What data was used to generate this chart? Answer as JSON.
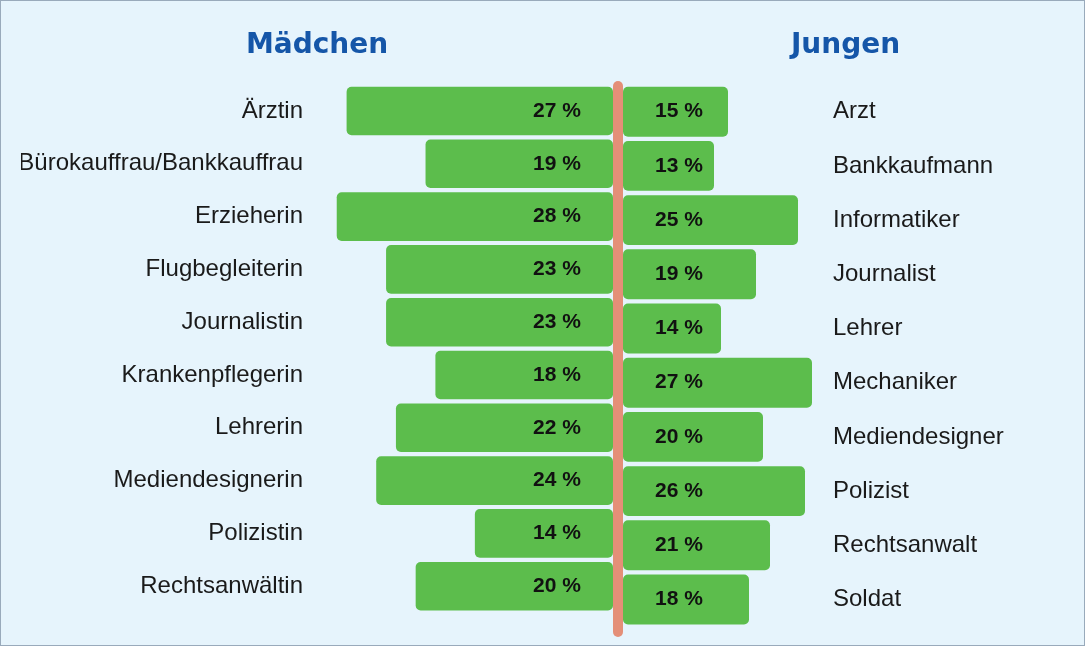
{
  "chart_data": [
    {
      "type": "bar",
      "orientation": "horizontal",
      "title": "Mädchen",
      "categories": [
        "Ärztin",
        "Bürokauffrau/Bankkauffrau",
        "Erzieherin",
        "Flugbegleiterin",
        "Journalistin",
        "Krankenpflegerin",
        "Lehrerin",
        "Mediendesignerin",
        "Polizistin",
        "Rechtsanwältin"
      ],
      "values": [
        27,
        19,
        28,
        23,
        23,
        18,
        22,
        24,
        14,
        20
      ],
      "value_labels": [
        "27 %",
        "19 %",
        "28 %",
        "23 %",
        "23 %",
        "18 %",
        "22 %",
        "24 %",
        "14 %",
        "20 %"
      ],
      "color": "#5cbd4c",
      "tick_labels": "y",
      "legend": false
    },
    {
      "type": "bar",
      "orientation": "horizontal",
      "title": "Jungen",
      "categories": [
        "Arzt",
        "Bankkaufmann",
        "Informatiker",
        "Journalist",
        "Lehrer",
        "Mechaniker",
        "Mediendesigner",
        "Polizist",
        "Rechtsanwalt",
        "Soldat"
      ],
      "values": [
        15,
        13,
        25,
        19,
        14,
        27,
        20,
        26,
        21,
        18
      ],
      "value_labels": [
        "15 %",
        "13 %",
        "25 %",
        "19 %",
        "14 %",
        "27 %",
        "20 %",
        "26 %",
        "21 %",
        "18 %"
      ],
      "color": "#5cbd4c",
      "tick_labels": "y",
      "legend": false
    }
  ]
}
